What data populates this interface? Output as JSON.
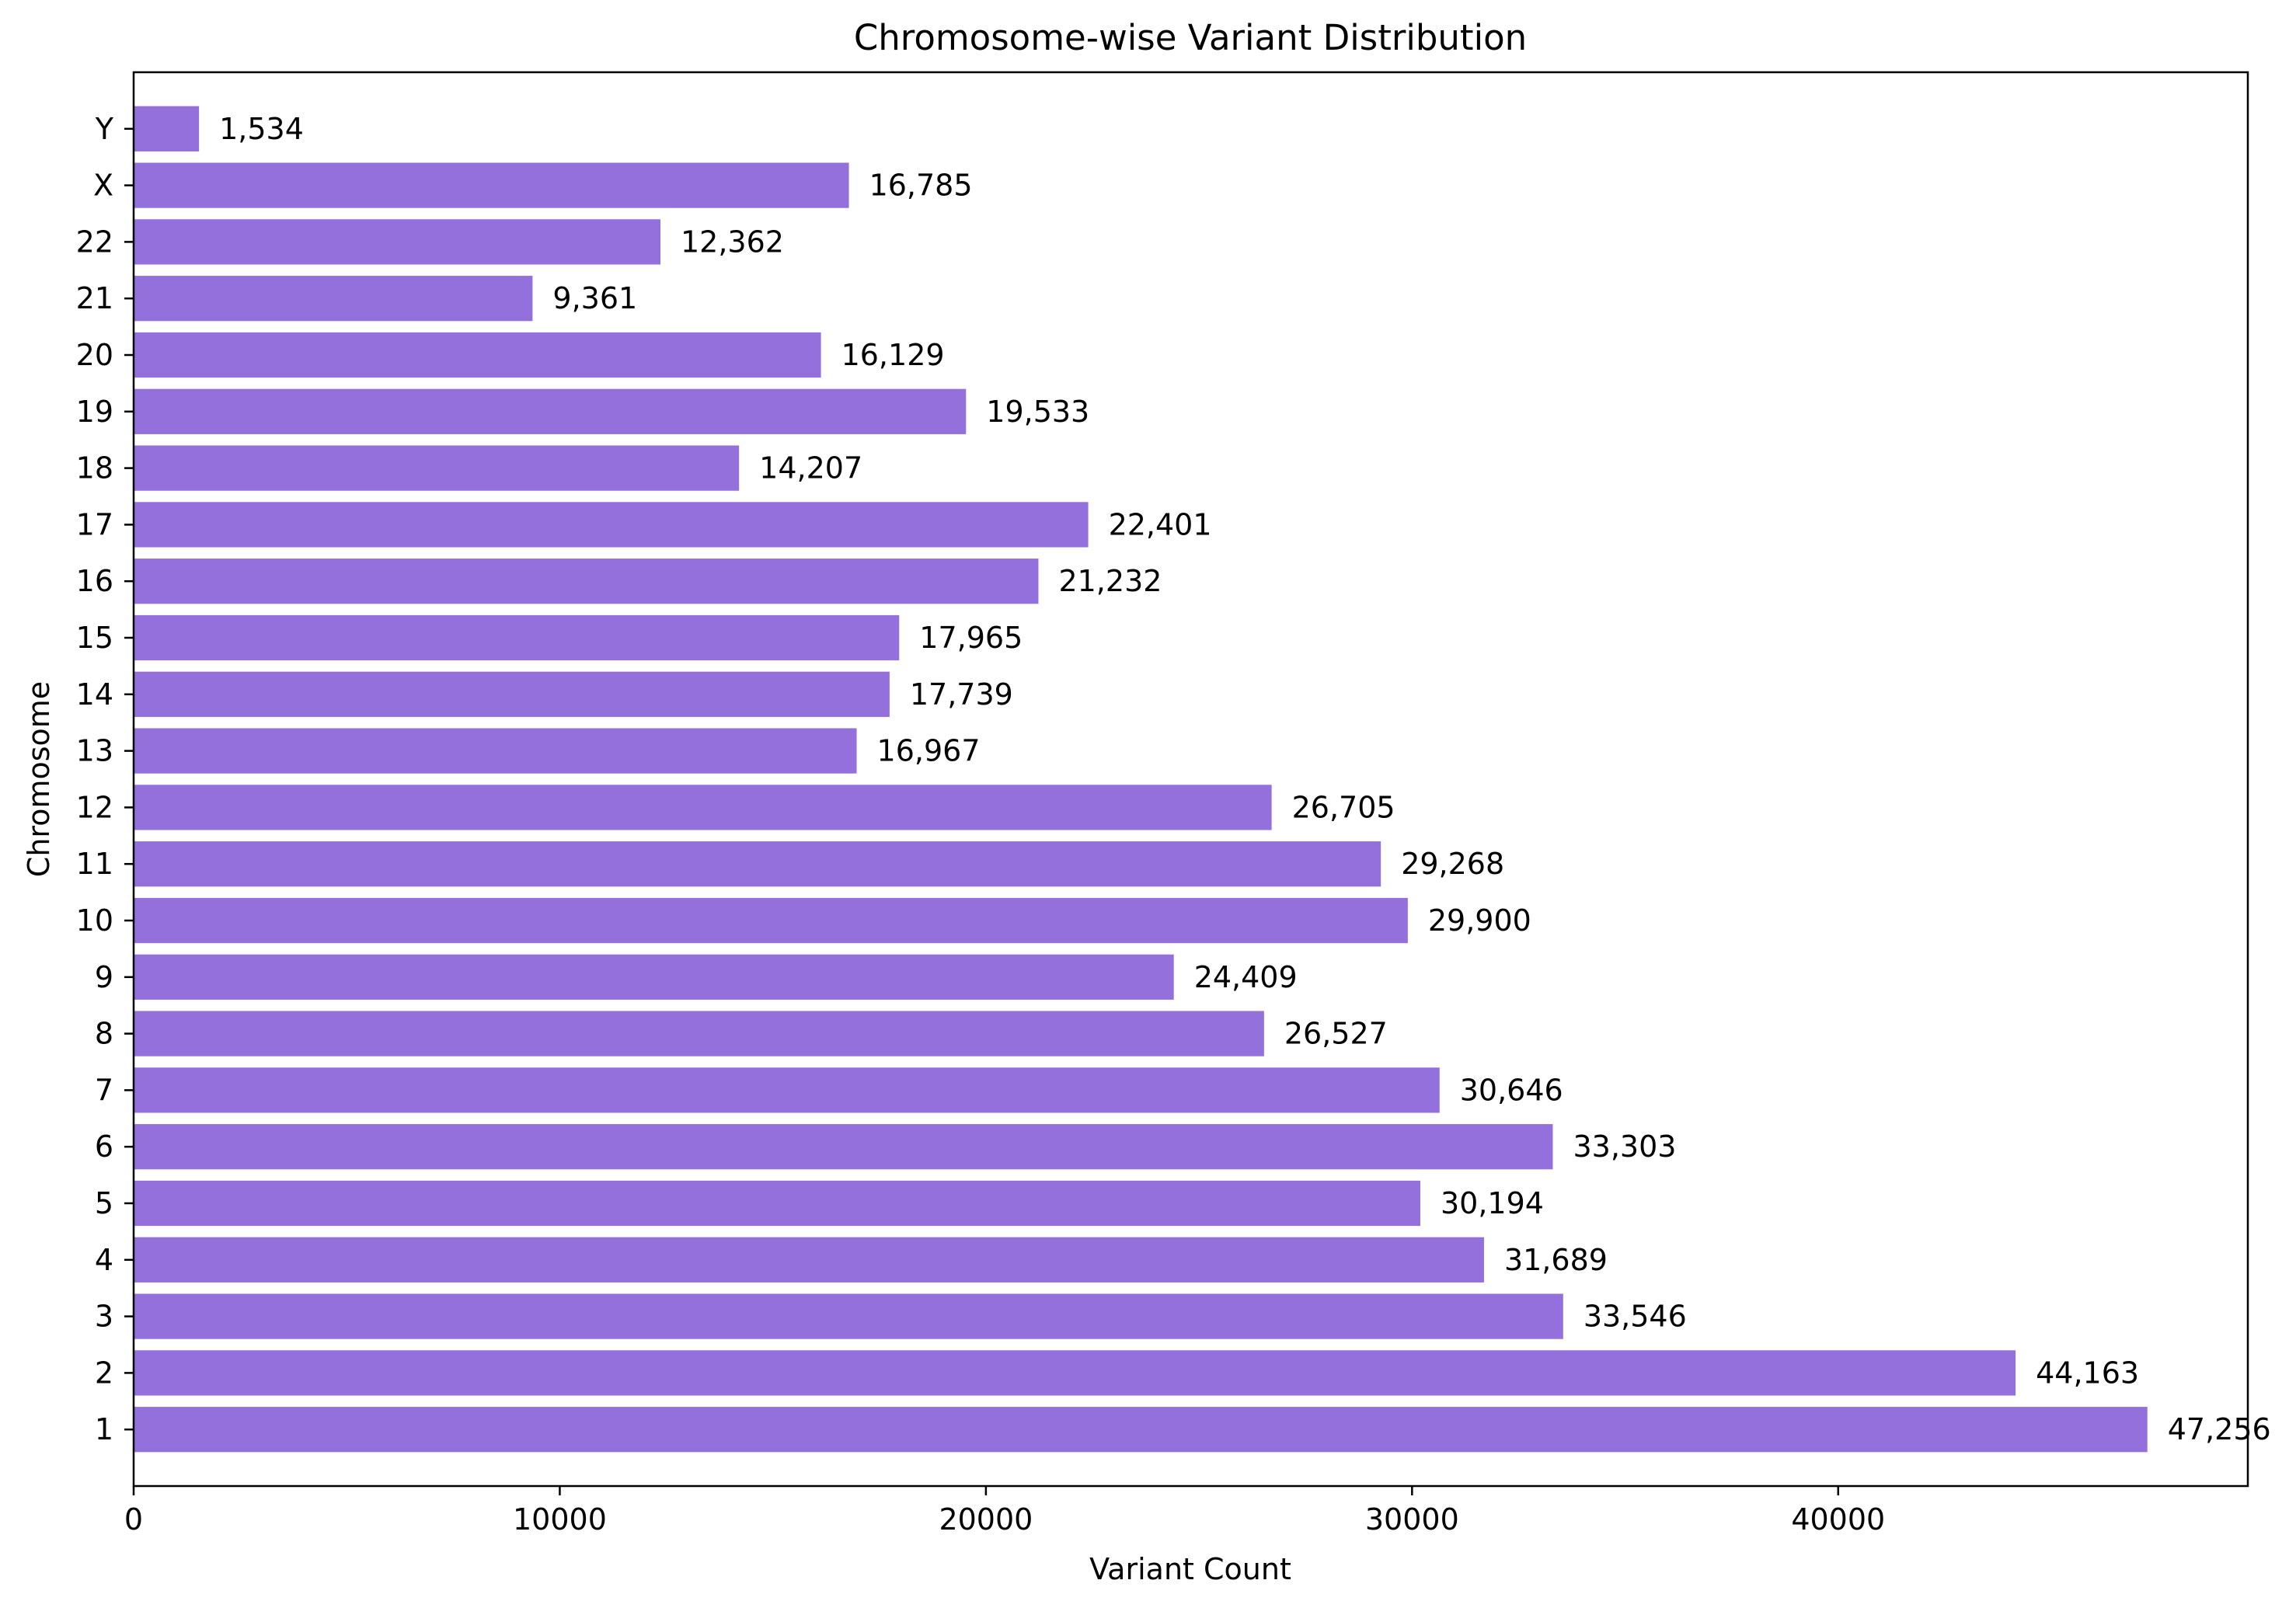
{
  "chart_data": {
    "type": "bar",
    "orientation": "horizontal",
    "title": "Chromosome-wise Variant Distribution",
    "xlabel": "Variant Count",
    "ylabel": "Chromosome",
    "xlim": [
      0,
      49613
    ],
    "x_ticks": [
      0,
      10000,
      20000,
      30000,
      40000
    ],
    "x_tick_labels": [
      "0",
      "10000",
      "20000",
      "30000",
      "40000"
    ],
    "grid": false,
    "legend": "none",
    "bar_color": "#9370DB",
    "categories": [
      "1",
      "2",
      "3",
      "4",
      "5",
      "6",
      "7",
      "8",
      "9",
      "10",
      "11",
      "12",
      "13",
      "14",
      "15",
      "16",
      "17",
      "18",
      "19",
      "20",
      "21",
      "22",
      "X",
      "Y"
    ],
    "values": [
      47256,
      44163,
      33546,
      31689,
      30194,
      33303,
      30646,
      26527,
      24409,
      29900,
      29268,
      26705,
      16967,
      17739,
      17965,
      21232,
      22401,
      14207,
      19533,
      16129,
      9361,
      12362,
      16785,
      1534
    ],
    "value_labels": [
      "47,256",
      "44,163",
      "33,546",
      "31,689",
      "30,194",
      "33,303",
      "30,646",
      "26,527",
      "24,409",
      "29,900",
      "29,268",
      "26,705",
      "16,967",
      "17,739",
      "17,965",
      "21,232",
      "22,401",
      "14,207",
      "19,533",
      "16,129",
      "9,361",
      "12,362",
      "16,785",
      "1,534"
    ]
  }
}
